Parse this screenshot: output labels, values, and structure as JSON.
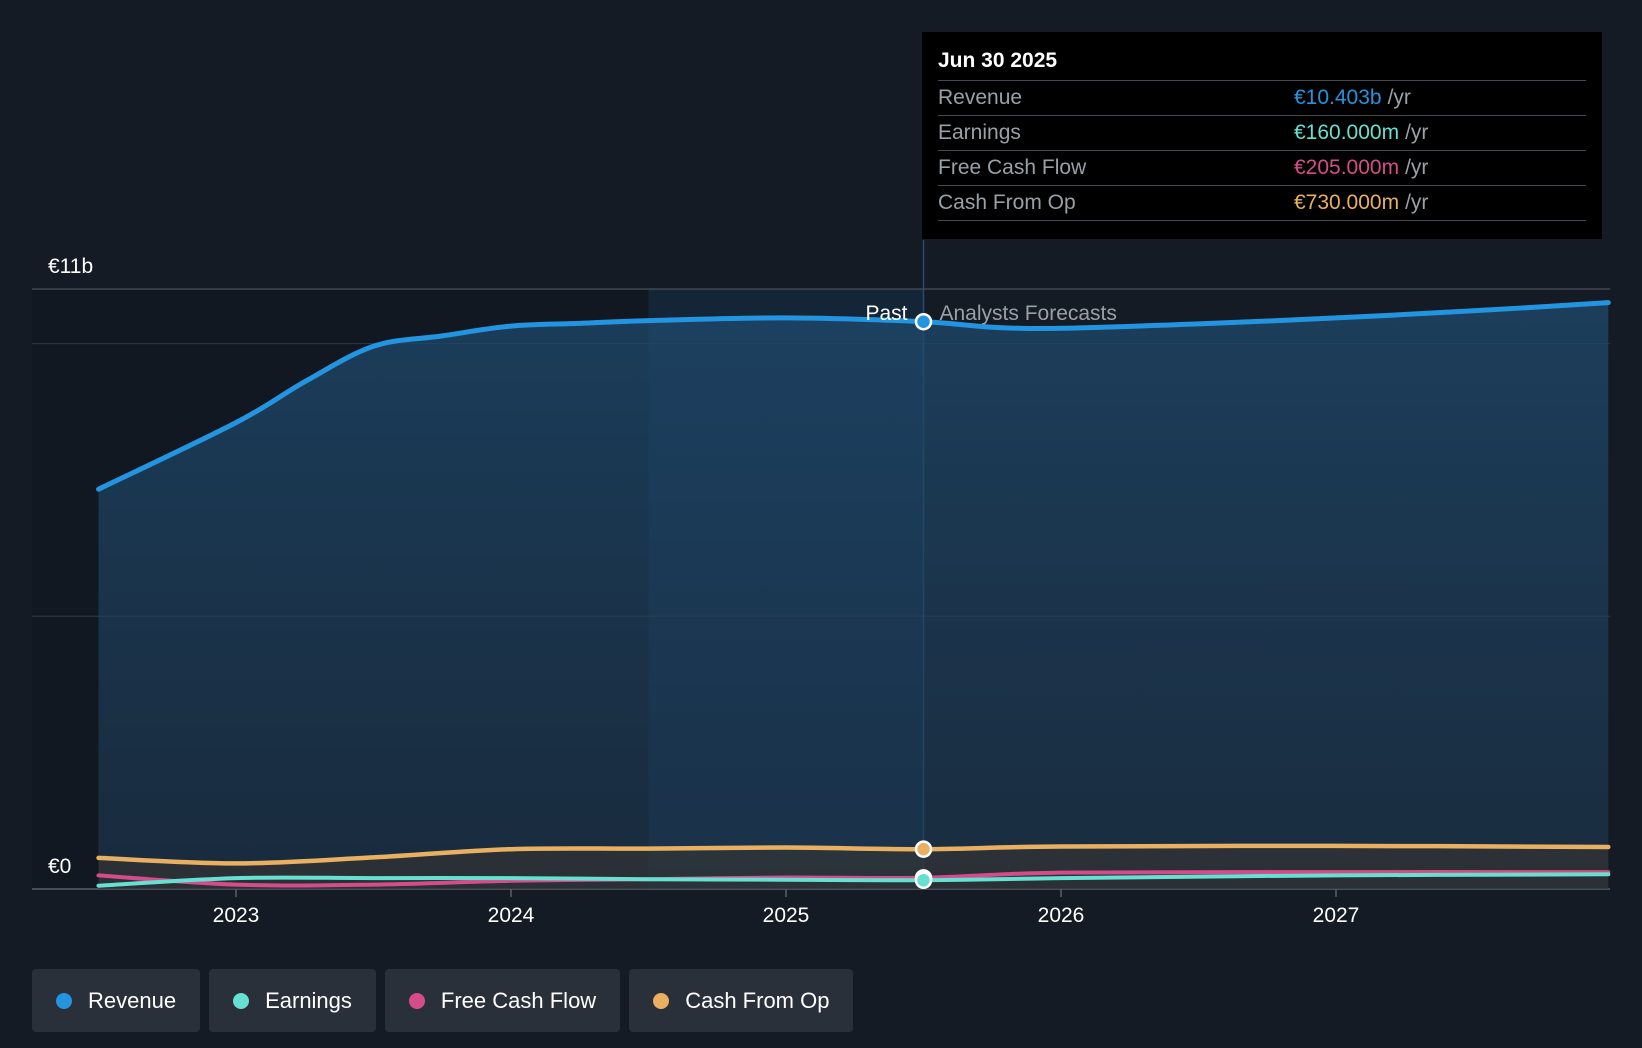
{
  "chart_data": {
    "type": "area",
    "title": "",
    "y_axis": {
      "top_label": "€11b",
      "bottom_label": "€0",
      "ylim": [
        0,
        11
      ]
    },
    "x_ticks": [
      "2023",
      "2024",
      "2025",
      "2026",
      "2027"
    ],
    "x_range": [
      2022.5,
      2027.99
    ],
    "divider_x": 2025.5,
    "highlight_range": [
      2024.5,
      2025.5
    ],
    "region_labels": {
      "past": "Past",
      "forecast": "Analysts Forecasts"
    },
    "series": [
      {
        "name": "Revenue",
        "key": "revenue",
        "color": "#2394df",
        "points": [
          [
            2022.5,
            7.33
          ],
          [
            2023.0,
            8.55
          ],
          [
            2023.25,
            9.3
          ],
          [
            2023.5,
            9.95
          ],
          [
            2023.75,
            10.14
          ],
          [
            2024.0,
            10.32
          ],
          [
            2024.25,
            10.37
          ],
          [
            2024.5,
            10.42
          ],
          [
            2025.0,
            10.47
          ],
          [
            2025.5,
            10.4
          ],
          [
            2025.75,
            10.3
          ],
          [
            2026.0,
            10.28
          ],
          [
            2026.5,
            10.36
          ],
          [
            2027.0,
            10.47
          ],
          [
            2027.5,
            10.6
          ],
          [
            2027.99,
            10.75
          ]
        ]
      },
      {
        "name": "Earnings",
        "key": "earnings",
        "color": "#66e0d0",
        "points": [
          [
            2022.5,
            0.06
          ],
          [
            2023.0,
            0.2
          ],
          [
            2023.5,
            0.2
          ],
          [
            2024.0,
            0.2
          ],
          [
            2024.5,
            0.18
          ],
          [
            2025.0,
            0.17
          ],
          [
            2025.5,
            0.16
          ],
          [
            2026.0,
            0.2
          ],
          [
            2027.0,
            0.25
          ],
          [
            2027.99,
            0.27
          ]
        ]
      },
      {
        "name": "Free Cash Flow",
        "key": "fcf",
        "color": "#d44d8a",
        "points": [
          [
            2022.5,
            0.25
          ],
          [
            2023.0,
            0.08
          ],
          [
            2023.5,
            0.08
          ],
          [
            2024.0,
            0.15
          ],
          [
            2024.5,
            0.18
          ],
          [
            2025.0,
            0.21
          ],
          [
            2025.5,
            0.205
          ],
          [
            2026.0,
            0.3
          ],
          [
            2027.0,
            0.31
          ],
          [
            2027.99,
            0.31
          ]
        ]
      },
      {
        "name": "Cash From Op",
        "key": "cfo",
        "color": "#e8b060",
        "points": [
          [
            2022.5,
            0.57
          ],
          [
            2023.0,
            0.47
          ],
          [
            2023.5,
            0.58
          ],
          [
            2024.0,
            0.73
          ],
          [
            2024.5,
            0.74
          ],
          [
            2025.0,
            0.76
          ],
          [
            2025.5,
            0.73
          ],
          [
            2026.0,
            0.78
          ],
          [
            2027.0,
            0.79
          ],
          [
            2027.99,
            0.77
          ]
        ]
      }
    ],
    "tooltip": {
      "date": "Jun 30 2025",
      "rows": [
        {
          "label": "Revenue",
          "value": "€10.403b",
          "unit": "/yr",
          "color": "#2394df"
        },
        {
          "label": "Earnings",
          "value": "€160.000m",
          "unit": "/yr",
          "color": "#66e0d0"
        },
        {
          "label": "Free Cash Flow",
          "value": "€205.000m",
          "unit": "/yr",
          "color": "#d44d8a"
        },
        {
          "label": "Cash From Op",
          "value": "€730.000m",
          "unit": "/yr",
          "color": "#e8b060"
        }
      ]
    }
  },
  "legend": [
    {
      "label": "Revenue",
      "color": "#2394df"
    },
    {
      "label": "Earnings",
      "color": "#66e0d0"
    },
    {
      "label": "Free Cash Flow",
      "color": "#d44d8a"
    },
    {
      "label": "Cash From Op",
      "color": "#e8b060"
    }
  ]
}
